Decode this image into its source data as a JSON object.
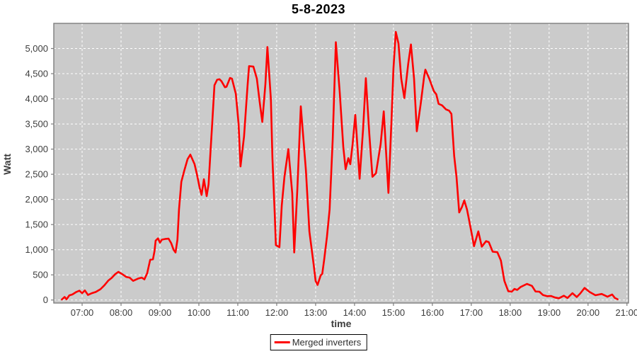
{
  "title": "5-8-2023",
  "legend": {
    "label": "Merged inverters",
    "series_color": "#fe0000",
    "position": "bottom-center"
  },
  "colors": {
    "outer_background": "#ffffff",
    "plot_background": "#cbcbcb",
    "grid_line": "#ffffff",
    "plot_border": "#7d7d7d",
    "tick_text": "#3c3c3c",
    "title_text": "#000000",
    "series_line": "#fe0000"
  },
  "chart_data": {
    "type": "line",
    "title": "5-8-2023",
    "xlabel": "time",
    "ylabel": "Watt",
    "grid": "white dashed on gray plot background",
    "legend_position": "bottom-center",
    "xlim": [
      6.272,
      21.04
    ],
    "ylim": [
      -60,
      5500
    ],
    "x_ticks": [
      {
        "value": 7,
        "label": "07:00"
      },
      {
        "value": 8,
        "label": "08:00"
      },
      {
        "value": 9,
        "label": "09:00"
      },
      {
        "value": 10,
        "label": "10:00"
      },
      {
        "value": 11,
        "label": "11:00"
      },
      {
        "value": 12,
        "label": "12:00"
      },
      {
        "value": 13,
        "label": "13:00"
      },
      {
        "value": 14,
        "label": "14:00"
      },
      {
        "value": 15,
        "label": "15:00"
      },
      {
        "value": 16,
        "label": "16:00"
      },
      {
        "value": 17,
        "label": "17:00"
      },
      {
        "value": 18,
        "label": "18:00"
      },
      {
        "value": 19,
        "label": "19:00"
      },
      {
        "value": 20,
        "label": "20:00"
      },
      {
        "value": 21,
        "label": "21:00"
      }
    ],
    "y_ticks": [
      {
        "value": 0,
        "label": "0"
      },
      {
        "value": 500,
        "label": "500"
      },
      {
        "value": 1000,
        "label": "1,000"
      },
      {
        "value": 1500,
        "label": "1,500"
      },
      {
        "value": 2000,
        "label": "2,000"
      },
      {
        "value": 2500,
        "label": "2,500"
      },
      {
        "value": 3000,
        "label": "3,000"
      },
      {
        "value": 3500,
        "label": "3,500"
      },
      {
        "value": 4000,
        "label": "4,000"
      },
      {
        "value": 4500,
        "label": "4,500"
      },
      {
        "value": 5000,
        "label": "5,000"
      }
    ],
    "series": [
      {
        "name": "Merged inverters",
        "color": "#fe0000",
        "x_unit": "hour_of_day_decimal",
        "y_unit": "Watt",
        "points": [
          [
            6.48,
            10
          ],
          [
            6.55,
            60
          ],
          [
            6.6,
            15
          ],
          [
            6.67,
            90
          ],
          [
            6.75,
            110
          ],
          [
            6.85,
            160
          ],
          [
            6.93,
            185
          ],
          [
            7.0,
            135
          ],
          [
            7.07,
            190
          ],
          [
            7.15,
            100
          ],
          [
            7.25,
            135
          ],
          [
            7.35,
            160
          ],
          [
            7.47,
            215
          ],
          [
            7.57,
            290
          ],
          [
            7.67,
            385
          ],
          [
            7.76,
            440
          ],
          [
            7.85,
            515
          ],
          [
            7.93,
            560
          ],
          [
            8.04,
            510
          ],
          [
            8.13,
            460
          ],
          [
            8.22,
            445
          ],
          [
            8.31,
            380
          ],
          [
            8.45,
            430
          ],
          [
            8.53,
            445
          ],
          [
            8.6,
            410
          ],
          [
            8.67,
            530
          ],
          [
            8.75,
            800
          ],
          [
            8.82,
            810
          ],
          [
            8.86,
            970
          ],
          [
            8.89,
            1180
          ],
          [
            8.95,
            1225
          ],
          [
            9.0,
            1140
          ],
          [
            9.05,
            1200
          ],
          [
            9.15,
            1215
          ],
          [
            9.22,
            1220
          ],
          [
            9.29,
            1130
          ],
          [
            9.35,
            1000
          ],
          [
            9.4,
            945
          ],
          [
            9.45,
            1200
          ],
          [
            9.49,
            1800
          ],
          [
            9.55,
            2350
          ],
          [
            9.62,
            2560
          ],
          [
            9.71,
            2800
          ],
          [
            9.78,
            2890
          ],
          [
            9.89,
            2700
          ],
          [
            9.95,
            2500
          ],
          [
            10.02,
            2230
          ],
          [
            10.07,
            2090
          ],
          [
            10.13,
            2400
          ],
          [
            10.2,
            2065
          ],
          [
            10.25,
            2300
          ],
          [
            10.29,
            2830
          ],
          [
            10.35,
            3600
          ],
          [
            10.4,
            4270
          ],
          [
            10.47,
            4380
          ],
          [
            10.53,
            4390
          ],
          [
            10.58,
            4350
          ],
          [
            10.67,
            4230
          ],
          [
            10.71,
            4240
          ],
          [
            10.8,
            4415
          ],
          [
            10.85,
            4400
          ],
          [
            10.95,
            4100
          ],
          [
            11.02,
            3500
          ],
          [
            11.07,
            2655
          ],
          [
            11.16,
            3250
          ],
          [
            11.25,
            4250
          ],
          [
            11.29,
            4650
          ],
          [
            11.4,
            4640
          ],
          [
            11.49,
            4400
          ],
          [
            11.56,
            3950
          ],
          [
            11.63,
            3540
          ],
          [
            11.71,
            4300
          ],
          [
            11.76,
            5030
          ],
          [
            11.85,
            4000
          ],
          [
            11.89,
            2820
          ],
          [
            11.95,
            1700
          ],
          [
            11.98,
            1090
          ],
          [
            12.07,
            1050
          ],
          [
            12.13,
            1880
          ],
          [
            12.2,
            2450
          ],
          [
            12.3,
            3000
          ],
          [
            12.4,
            2120
          ],
          [
            12.45,
            945
          ],
          [
            12.53,
            2200
          ],
          [
            12.62,
            3850
          ],
          [
            12.75,
            2580
          ],
          [
            12.84,
            1365
          ],
          [
            12.95,
            700
          ],
          [
            13.0,
            380
          ],
          [
            13.05,
            300
          ],
          [
            13.13,
            490
          ],
          [
            13.17,
            520
          ],
          [
            13.22,
            800
          ],
          [
            13.29,
            1250
          ],
          [
            13.36,
            1800
          ],
          [
            13.44,
            3200
          ],
          [
            13.52,
            5125
          ],
          [
            13.62,
            4130
          ],
          [
            13.71,
            3050
          ],
          [
            13.77,
            2600
          ],
          [
            13.84,
            2820
          ],
          [
            13.89,
            2700
          ],
          [
            13.95,
            3100
          ],
          [
            14.02,
            3680
          ],
          [
            14.13,
            2410
          ],
          [
            14.22,
            3400
          ],
          [
            14.29,
            4410
          ],
          [
            14.38,
            3300
          ],
          [
            14.46,
            2450
          ],
          [
            14.55,
            2520
          ],
          [
            14.67,
            3100
          ],
          [
            14.75,
            3750
          ],
          [
            14.87,
            2130
          ],
          [
            14.95,
            3560
          ],
          [
            15.0,
            4600
          ],
          [
            15.06,
            5330
          ],
          [
            15.13,
            5100
          ],
          [
            15.2,
            4400
          ],
          [
            15.28,
            4015
          ],
          [
            15.38,
            4700
          ],
          [
            15.45,
            5080
          ],
          [
            15.53,
            4400
          ],
          [
            15.6,
            3355
          ],
          [
            15.7,
            3900
          ],
          [
            15.79,
            4450
          ],
          [
            15.82,
            4580
          ],
          [
            15.92,
            4400
          ],
          [
            16.0,
            4230
          ],
          [
            16.04,
            4150
          ],
          [
            16.1,
            4090
          ],
          [
            16.16,
            3900
          ],
          [
            16.25,
            3870
          ],
          [
            16.35,
            3790
          ],
          [
            16.43,
            3765
          ],
          [
            16.49,
            3700
          ],
          [
            16.56,
            2865
          ],
          [
            16.62,
            2445
          ],
          [
            16.69,
            1740
          ],
          [
            16.76,
            1850
          ],
          [
            16.82,
            1980
          ],
          [
            16.89,
            1800
          ],
          [
            16.93,
            1645
          ],
          [
            17.02,
            1280
          ],
          [
            17.07,
            1070
          ],
          [
            17.18,
            1365
          ],
          [
            17.27,
            1060
          ],
          [
            17.38,
            1170
          ],
          [
            17.45,
            1150
          ],
          [
            17.55,
            960
          ],
          [
            17.67,
            950
          ],
          [
            17.76,
            785
          ],
          [
            17.85,
            380
          ],
          [
            17.95,
            175
          ],
          [
            18.04,
            165
          ],
          [
            18.11,
            220
          ],
          [
            18.18,
            200
          ],
          [
            18.27,
            260
          ],
          [
            18.43,
            320
          ],
          [
            18.56,
            280
          ],
          [
            18.65,
            170
          ],
          [
            18.75,
            165
          ],
          [
            18.84,
            100
          ],
          [
            18.95,
            75
          ],
          [
            19.05,
            80
          ],
          [
            19.15,
            50
          ],
          [
            19.25,
            35
          ],
          [
            19.38,
            85
          ],
          [
            19.47,
            40
          ],
          [
            19.6,
            135
          ],
          [
            19.71,
            60
          ],
          [
            19.8,
            130
          ],
          [
            19.91,
            240
          ],
          [
            20.04,
            160
          ],
          [
            20.19,
            95
          ],
          [
            20.35,
            120
          ],
          [
            20.5,
            65
          ],
          [
            20.62,
            110
          ],
          [
            20.69,
            40
          ],
          [
            20.76,
            15
          ]
        ]
      }
    ]
  }
}
